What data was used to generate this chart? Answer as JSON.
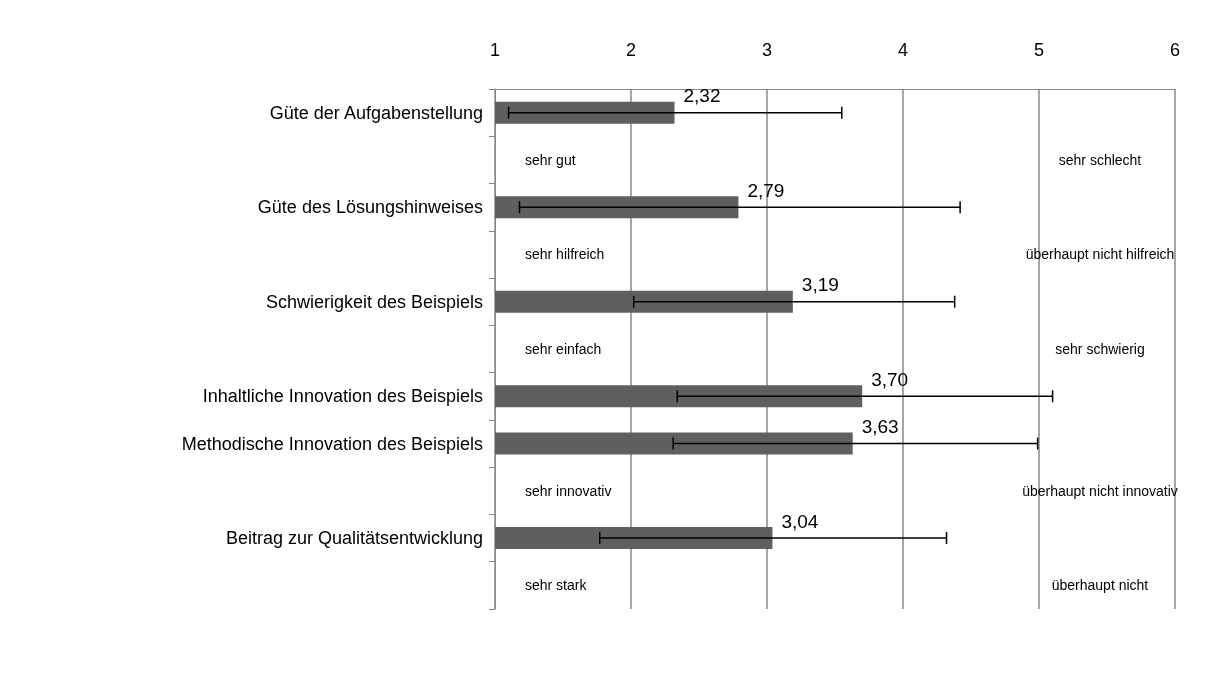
{
  "chart_data": {
    "type": "bar",
    "orientation": "horizontal",
    "categories": [
      "Güte der Aufgabenstellung",
      null,
      "Güte des Lösungshinweises",
      null,
      "Schwierigkeit des Beispiels",
      null,
      "Inhaltliche Innovation des Beispiels",
      "Methodische Innovation des Beispiels",
      null,
      "Beitrag zur Qualitätsentwicklung",
      null
    ],
    "values": [
      2.32,
      null,
      2.79,
      null,
      3.19,
      null,
      3.7,
      3.63,
      null,
      3.04,
      null
    ],
    "value_labels": [
      "2,32",
      null,
      "2,79",
      null,
      "3,19",
      null,
      "3,70",
      "3,63",
      null,
      "3,04",
      null
    ],
    "errors": [
      [
        1.1,
        3.55
      ],
      null,
      [
        1.18,
        4.42
      ],
      null,
      [
        2.02,
        4.38
      ],
      null,
      [
        2.34,
        5.1
      ],
      [
        2.31,
        4.99
      ],
      null,
      [
        1.77,
        4.32
      ],
      null
    ],
    "color": "#5f5f5f",
    "xlim": [
      1,
      6
    ],
    "xticks": [
      1,
      2,
      3,
      4,
      5,
      6
    ],
    "grid": "x",
    "annotations": [
      "sehr gut",
      "sehr schlecht",
      "sehr hilfreich",
      "überhaupt nicht hilfreich",
      "sehr einfach",
      "sehr schwierig",
      "sehr innovativ",
      "überhaupt nicht innovativ",
      "sehr stark",
      "überhaupt nicht"
    ]
  }
}
